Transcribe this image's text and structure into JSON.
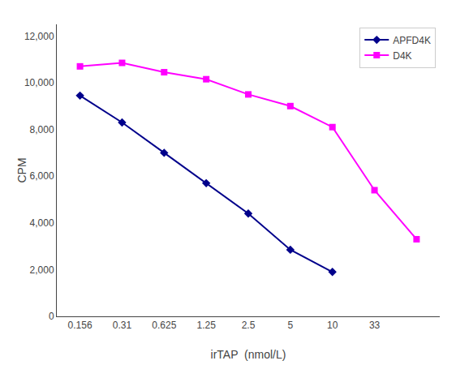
{
  "chart_data": {
    "type": "line",
    "xlabel": "irTAP  (nmol/L)",
    "ylabel": "CPM",
    "categories": [
      "0.156",
      "0.31",
      "0.625",
      "1.25",
      "2.5",
      "5",
      "10",
      "33",
      null
    ],
    "series": [
      {
        "name": "APFD4K",
        "color": "#00008B",
        "marker": "diamond",
        "values": [
          9450,
          8300,
          7000,
          5700,
          4400,
          2850,
          1900,
          null,
          null
        ]
      },
      {
        "name": "D4K",
        "color": "#FF00FF",
        "marker": "square",
        "values": [
          10700,
          10850,
          10450,
          10150,
          9500,
          9000,
          8100,
          5400,
          3300
        ]
      }
    ],
    "ylim": [
      0,
      12500
    ],
    "yticks": [
      0,
      {
        "value": 2000,
        "label": "2,000"
      },
      {
        "value": 4000,
        "label": "4,000"
      },
      {
        "value": 6000,
        "label": "6,000"
      },
      {
        "value": 8000,
        "label": "8,000"
      },
      {
        "value": 10000,
        "label": "10,000"
      },
      {
        "value": 12000,
        "label": "12,000"
      }
    ],
    "grid": false,
    "legend": "upper right"
  }
}
